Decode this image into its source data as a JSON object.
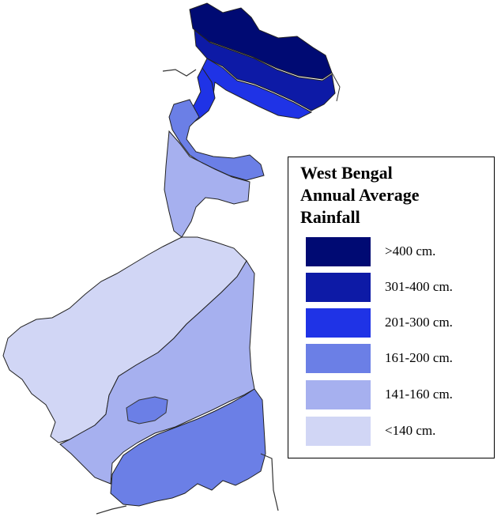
{
  "legend": {
    "title_lines": [
      "West Bengal",
      "Annual Average",
      "Rainfall"
    ],
    "items": [
      {
        "label": ">400 cm.",
        "color": "#000a73"
      },
      {
        "label": "301-400 cm.",
        "color": "#0d1aa6"
      },
      {
        "label": "201-300 cm.",
        "color": "#1f33e6"
      },
      {
        "label": "161-200 cm.",
        "color": "#6b7fe6"
      },
      {
        "label": "141-160 cm.",
        "color": "#a6b0ef"
      },
      {
        "label": "<140 cm.",
        "color": "#d1d6f5"
      }
    ]
  }
}
